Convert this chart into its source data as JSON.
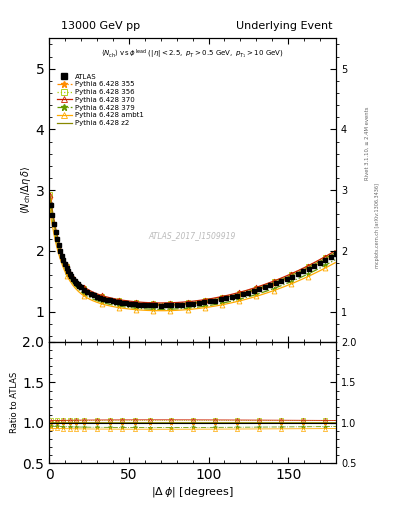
{
  "title_left": "13000 GeV pp",
  "title_right": "Underlying Event",
  "ylabel_main": "⟨N_{ch} / Δη delta⟩",
  "ylabel_ratio": "Ratio to ATLAS",
  "xlabel": "|Δ ϕ| [degrees]",
  "subtitle": "⟨N_{ch}⟩ vs ϕ^{lead} (|η| < 2.5, p_T > 0.5 GeV, p_{T1} > 10 GeV)",
  "watermark": "ATLAS_2017_I1509919",
  "rivet_text": "Rivet 3.1.10, ≥ 2.4M events",
  "arxiv_text": "mcplots.cern.ch [arXiv:1306.3436]",
  "ylim_main": [
    0.5,
    5.5
  ],
  "ylim_ratio": [
    0.5,
    2.0
  ],
  "xlim": [
    0,
    180
  ],
  "yticks_main": [
    1,
    2,
    3,
    4,
    5
  ],
  "yticks_ratio": [
    0.5,
    1.0,
    1.5,
    2.0
  ],
  "colors": [
    "#ff8c00",
    "#aacc00",
    "#cc2200",
    "#669900",
    "#ffaa00",
    "#888800"
  ],
  "markers": [
    "*",
    "s",
    "^",
    "*",
    "^",
    "none"
  ],
  "linestyles": [
    "-.",
    ":",
    "-",
    "-.",
    "-",
    "-"
  ],
  "labels": [
    "ATLAS",
    "Pythia 6.428 355",
    "Pythia 6.428 356",
    "Pythia 6.428 370",
    "Pythia 6.428 379",
    "Pythia 6.428 ambt1",
    "Pythia 6.428 z2"
  ],
  "mc_scale": [
    1.0,
    1.03,
    1.02,
    0.97,
    0.94,
    1.015
  ],
  "mc_offset": [
    0.0,
    0.0,
    0.02,
    -0.03,
    -0.02,
    0.0
  ]
}
